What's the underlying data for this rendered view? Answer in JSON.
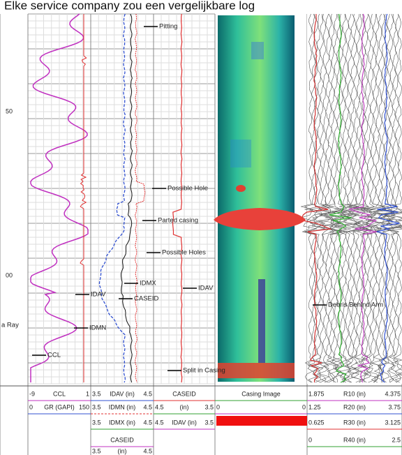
{
  "title": "Elke service company zou een vergelijkbare log",
  "depth_labels": [
    "50",
    "00"
  ],
  "annotations": [
    "Pitting",
    "Possible Hole",
    "Parted casing",
    "Possible Holes",
    "IDMX",
    "IDAV",
    "IDAV",
    "CASEID",
    "IDMN",
    "a Ray",
    "CCL",
    "Debris Behind Arm",
    "Split in Casing"
  ],
  "headers": [
    {
      "rows": [
        {
          "min": "-9",
          "name": "CCL",
          "max": "1"
        },
        {
          "min": "0",
          "name": "GR (GAPI)",
          "max": "150"
        }
      ]
    },
    {
      "rows": [
        {
          "min": "3.5",
          "name": "IDAV (in)",
          "max": "4.5"
        },
        {
          "min": "3.5",
          "name": "IDMN (in)",
          "max": "4.5"
        },
        {
          "min": "3.5",
          "name": "IDMX (in)",
          "max": "4.5"
        },
        {
          "name": "CASEID"
        },
        {
          "min": "3.5",
          "name": "(in)",
          "max": "4.5"
        }
      ]
    },
    {
      "rows": [
        {
          "name": "CASEID"
        },
        {
          "min": "4.5",
          "name": "(in)",
          "max": "3.5"
        },
        {
          "min": "4.5",
          "name": "IDAV (in)",
          "max": "3.5"
        }
      ]
    },
    {
      "rows": [
        {
          "name": "Casing Image"
        },
        {
          "min": "0",
          "max": "0"
        }
      ]
    },
    {
      "rows": [
        {
          "min": "1.875",
          "name": "R10 (in)",
          "max": "4.375"
        },
        {
          "min": "1.25",
          "name": "R20 (in)",
          "max": "3.75"
        },
        {
          "min": "0.625",
          "name": "R30 (in)",
          "max": "3.125"
        },
        {
          "min": "0",
          "name": "R40 (in)",
          "max": "2.5"
        }
      ]
    }
  ]
}
